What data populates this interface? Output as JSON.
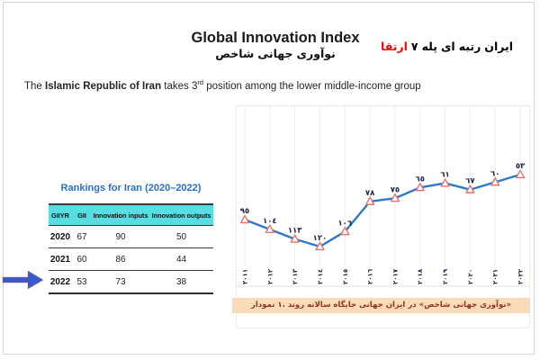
{
  "header": {
    "title": "Global Innovation Index",
    "subtitle_fa": "شاخص جهانی نوآوری",
    "headline_red": "ارتقا",
    "headline_rest": "۷ پله ای رتبه ایران"
  },
  "statement": {
    "pre": "The ",
    "bold": "Islamic Republic of Iran",
    "mid": " takes 3",
    "sup": "rd",
    "post": " position among the lower middle-income group"
  },
  "table": {
    "title": "Rankings for Iran (2020–2022)",
    "headers": [
      "GIIYR",
      "GII",
      "Innovation inputs",
      "Innovation outputs"
    ],
    "rows": [
      [
        "2020",
        "67",
        "90",
        "50"
      ],
      [
        "2021",
        "60",
        "86",
        "44"
      ],
      [
        "2022",
        "53",
        "73",
        "38"
      ]
    ],
    "header_bg": "#57dde2",
    "title_color": "#2a6fc4"
  },
  "arrow": {
    "color": "#3a57cb",
    "points_to": "2022"
  },
  "chart_data": {
    "type": "line",
    "x_years": [
      2011,
      2012,
      2013,
      2014,
      2015,
      2016,
      2017,
      2018,
      2019,
      2020,
      2021,
      2022
    ],
    "x_labels": [
      "٢٠١١",
      "٢٠١٢",
      "٢٠١٣",
      "٢٠١٤",
      "٢٠١٥",
      "٢٠١٦",
      "٢٠١٧",
      "٢٠١٨",
      "٢٠١٩",
      "٢٠٢٠",
      "٢٠٢١",
      "٢٠٢٢"
    ],
    "values": [
      95,
      104,
      113,
      120,
      106,
      78,
      75,
      65,
      61,
      67,
      60,
      53
    ],
    "labels": [
      "٩٥",
      "١٠٤",
      "١١٣",
      "١٢٠",
      "١٠٦",
      "٧٨",
      "٧٥",
      "٦٥",
      "٦١",
      "٦٧",
      "٦٠",
      "٥٣"
    ],
    "y_inverted": true,
    "grid": "vertical-light",
    "legend": "none",
    "line_color": "#2d7ac8",
    "marker": "triangle-up",
    "marker_color": "#e8736b",
    "label_color": "#1c2746",
    "caption": "نمودار ١. روند سالانه جایگاه جهانی ایران در «شاخص جهانی نوآوری»",
    "caption_bg": "#f8dcba",
    "caption_color": "#8e3423"
  }
}
